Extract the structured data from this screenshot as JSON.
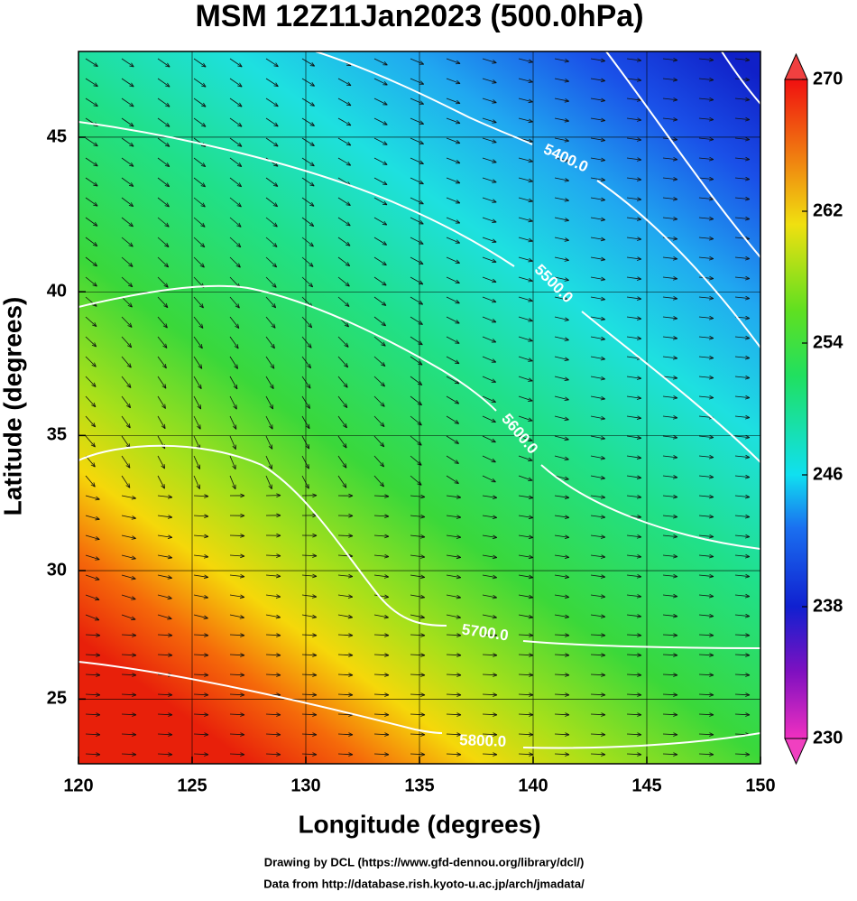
{
  "chart_data": {
    "type": "map",
    "title": "MSM 12Z11Jan2023 (500.0hPa)",
    "x_label": "Longitude (degrees)",
    "y_label": "Latitude  (degrees)",
    "xlim": [
      120,
      150
    ],
    "ylim": [
      22.4,
      47.6
    ],
    "xticks": [
      120,
      125,
      130,
      135,
      140,
      145,
      150
    ],
    "yticks": [
      25,
      30,
      35,
      40,
      45
    ],
    "grid": true,
    "colorbar": {
      "lim": [
        230,
        270
      ],
      "ticks": [
        230,
        238,
        246,
        254,
        262,
        270
      ]
    },
    "contour_labels": [
      "5400.0",
      "5500.0",
      "5600.0",
      "5700.0",
      "5800.0"
    ],
    "credits": [
      "Drawing by DCL (https://www.gfd-dennou.org/library/dcl/)",
      "Data from http://database.rish.kyoto-u.ac.jp/arch/jmadata/"
    ]
  }
}
